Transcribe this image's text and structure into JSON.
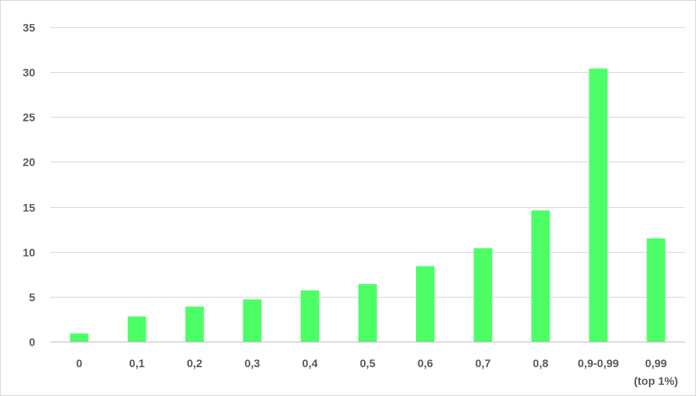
{
  "chart_data": {
    "type": "bar",
    "title": "",
    "xlabel": "",
    "ylabel": "",
    "categories": [
      [
        "0"
      ],
      [
        "0,1"
      ],
      [
        "0,2"
      ],
      [
        "0,3"
      ],
      [
        "0,4"
      ],
      [
        "0,5"
      ],
      [
        "0,6"
      ],
      [
        "0,7"
      ],
      [
        "0,8"
      ],
      [
        "0,9-0,99"
      ],
      [
        "0,99",
        "(top 1%)"
      ]
    ],
    "values": [
      0.9,
      2.8,
      3.9,
      4.7,
      5.7,
      6.4,
      8.4,
      10.4,
      14.6,
      30.4,
      11.5
    ],
    "ylim": [
      0,
      35
    ],
    "yticks": [
      0,
      5,
      10,
      15,
      20,
      25,
      30,
      35
    ],
    "grid": true,
    "legend": "none",
    "bar_color": "#4dff66"
  }
}
